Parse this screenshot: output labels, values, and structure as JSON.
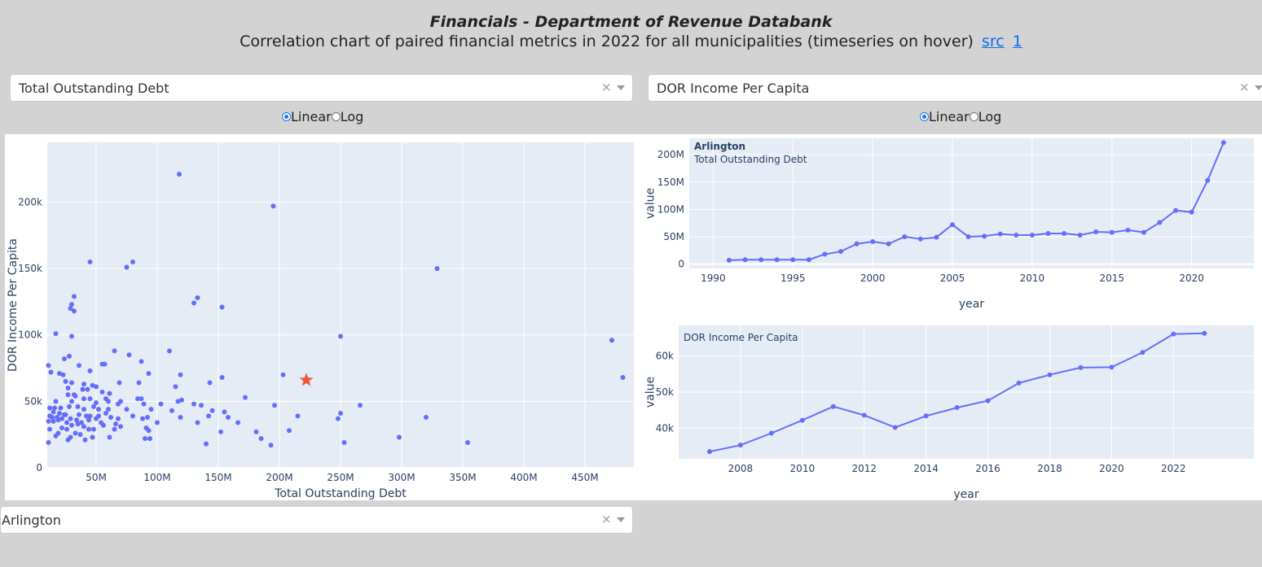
{
  "header": {
    "title": "Financials - Department of Revenue Databank",
    "subtitle": "Correlation chart of paired financial metrics in 2022 for all municipalities (timeseries on hover)",
    "link_src": "src",
    "link_1": "1"
  },
  "controls": {
    "x_metric": "Total Outstanding Debt",
    "y_metric": "DOR Income Per Capita",
    "x_scale_options": [
      "Linear",
      "Log"
    ],
    "x_scale_selected": "Linear",
    "y_scale_options": [
      "Linear",
      "Log"
    ],
    "y_scale_selected": "Linear",
    "municipality": "Arlington",
    "clear_symbol": "×",
    "dropdown_icon": "chevron-down-icon",
    "clear_icon": "close-icon"
  },
  "colors": {
    "marker": "#636efa",
    "highlight": "#ef553b",
    "plot_bg": "#e5ecf6"
  },
  "chart_data": [
    {
      "type": "scatter",
      "xlabel": "Total Outstanding Debt",
      "ylabel": "DOR Income Per Capita",
      "xlim": [
        10,
        490
      ],
      "ylim": [
        0,
        245
      ],
      "x_ticks": [
        50,
        100,
        150,
        200,
        250,
        300,
        350,
        400,
        450
      ],
      "x_tick_labels": [
        "50M",
        "100M",
        "150M",
        "200M",
        "250M",
        "300M",
        "350M",
        "400M",
        "450M"
      ],
      "y_ticks": [
        0,
        50,
        100,
        150,
        200
      ],
      "y_tick_labels": [
        "0",
        "50k",
        "100k",
        "150k",
        "200k"
      ],
      "grid": true,
      "highlight": {
        "name": "Arlington",
        "x": 222,
        "y": 66
      },
      "points": [
        [
          118,
          221
        ],
        [
          195,
          197
        ],
        [
          45,
          155
        ],
        [
          80,
          155
        ],
        [
          75,
          151
        ],
        [
          329,
          150
        ],
        [
          32,
          129
        ],
        [
          133,
          128
        ],
        [
          30,
          123
        ],
        [
          29,
          120
        ],
        [
          32,
          118
        ],
        [
          130,
          124
        ],
        [
          153,
          121
        ],
        [
          17,
          101
        ],
        [
          30,
          99
        ],
        [
          250,
          99
        ],
        [
          472,
          96
        ],
        [
          481,
          68
        ],
        [
          110,
          88
        ],
        [
          65,
          88
        ],
        [
          77,
          85
        ],
        [
          28,
          84
        ],
        [
          24,
          82
        ],
        [
          87,
          80
        ],
        [
          36,
          77
        ],
        [
          11,
          77
        ],
        [
          55,
          78
        ],
        [
          57,
          78
        ],
        [
          45,
          73
        ],
        [
          13,
          72
        ],
        [
          20,
          71
        ],
        [
          23,
          70
        ],
        [
          93,
          71
        ],
        [
          119,
          70
        ],
        [
          203,
          70
        ],
        [
          153,
          68
        ],
        [
          25,
          65
        ],
        [
          30,
          64
        ],
        [
          40,
          63
        ],
        [
          47,
          62
        ],
        [
          69,
          64
        ],
        [
          85,
          64
        ],
        [
          143,
          64
        ],
        [
          115,
          61
        ],
        [
          39,
          59
        ],
        [
          50,
          61
        ],
        [
          27,
          60
        ],
        [
          43,
          59
        ],
        [
          55,
          57
        ],
        [
          61,
          56
        ],
        [
          32,
          55
        ],
        [
          33,
          54
        ],
        [
          27,
          55
        ],
        [
          40,
          52
        ],
        [
          45,
          52
        ],
        [
          58,
          52
        ],
        [
          172,
          53
        ],
        [
          84,
          52
        ],
        [
          87,
          52
        ],
        [
          120,
          51
        ],
        [
          117,
          50
        ],
        [
          60,
          50
        ],
        [
          70,
          50
        ],
        [
          17,
          50
        ],
        [
          30,
          50
        ],
        [
          50,
          49
        ],
        [
          68,
          48
        ],
        [
          89,
          48
        ],
        [
          103,
          48
        ],
        [
          130,
          48
        ],
        [
          136,
          47
        ],
        [
          196,
          47
        ],
        [
          266,
          47
        ],
        [
          28,
          46
        ],
        [
          35,
          46
        ],
        [
          48,
          46
        ],
        [
          12,
          45
        ],
        [
          16,
          45
        ],
        [
          21,
          45
        ],
        [
          40,
          44
        ],
        [
          52,
          44
        ],
        [
          60,
          44
        ],
        [
          75,
          44
        ],
        [
          95,
          44
        ],
        [
          112,
          43
        ],
        [
          145,
          43
        ],
        [
          155,
          42
        ],
        [
          250,
          41
        ],
        [
          20,
          41
        ],
        [
          24,
          40
        ],
        [
          36,
          40
        ],
        [
          45,
          39
        ],
        [
          52,
          39
        ],
        [
          62,
          38
        ],
        [
          80,
          39
        ],
        [
          92,
          38
        ],
        [
          119,
          38
        ],
        [
          142,
          39
        ],
        [
          158,
          38
        ],
        [
          12,
          39
        ],
        [
          14,
          38
        ],
        [
          18,
          38
        ],
        [
          22,
          37
        ],
        [
          29,
          37
        ],
        [
          34,
          36
        ],
        [
          44,
          36
        ],
        [
          50,
          37
        ],
        [
          68,
          37
        ],
        [
          88,
          37
        ],
        [
          215,
          39
        ],
        [
          248,
          37
        ],
        [
          320,
          38
        ],
        [
          11,
          35
        ],
        [
          15,
          35
        ],
        [
          26,
          34
        ],
        [
          38,
          34
        ],
        [
          54,
          34
        ],
        [
          66,
          33
        ],
        [
          100,
          34
        ],
        [
          133,
          34
        ],
        [
          166,
          34
        ],
        [
          30,
          32
        ],
        [
          40,
          31
        ],
        [
          56,
          32
        ],
        [
          70,
          31
        ],
        [
          91,
          30
        ],
        [
          22,
          30
        ],
        [
          44,
          29
        ],
        [
          48,
          29
        ],
        [
          12,
          29
        ],
        [
          26,
          29
        ],
        [
          65,
          29
        ],
        [
          93,
          28
        ],
        [
          152,
          27
        ],
        [
          181,
          27
        ],
        [
          208,
          28
        ],
        [
          19,
          26
        ],
        [
          33,
          26
        ],
        [
          29,
          23
        ],
        [
          37,
          25
        ],
        [
          47,
          23
        ],
        [
          61,
          23
        ],
        [
          90,
          22
        ],
        [
          94,
          22
        ],
        [
          185,
          22
        ],
        [
          27,
          21
        ],
        [
          41,
          21
        ],
        [
          140,
          18
        ],
        [
          193,
          17
        ],
        [
          253,
          19
        ],
        [
          298,
          23
        ],
        [
          354,
          19
        ],
        [
          11,
          19
        ],
        [
          17,
          24
        ],
        [
          15,
          42
        ],
        [
          25,
          40
        ],
        [
          35,
          33
        ],
        [
          19,
          36
        ],
        [
          42,
          39
        ],
        [
          58,
          41
        ]
      ]
    },
    {
      "type": "line",
      "annotation_title": "Arlington",
      "annotation_subtitle": "Total Outstanding Debt",
      "xlabel": "year",
      "ylabel": "value",
      "xlim": [
        1988.5,
        2023.9
      ],
      "ylim": [
        -8,
        230
      ],
      "x_ticks": [
        1990,
        1995,
        2000,
        2005,
        2010,
        2015,
        2020
      ],
      "y_ticks": [
        0,
        50,
        100,
        150,
        200
      ],
      "y_tick_labels": [
        "0",
        "50M",
        "100M",
        "150M",
        "200M"
      ],
      "x": [
        1991,
        1992,
        1993,
        1994,
        1995,
        1996,
        1997,
        1998,
        1999,
        2000,
        2001,
        2002,
        2003,
        2004,
        2005,
        2006,
        2007,
        2008,
        2009,
        2010,
        2011,
        2012,
        2013,
        2014,
        2015,
        2016,
        2017,
        2018,
        2019,
        2020,
        2021,
        2022
      ],
      "values": [
        7,
        8,
        8,
        8,
        8,
        8,
        18,
        23,
        37,
        41,
        37,
        50,
        46,
        49,
        72,
        50,
        51,
        55,
        53,
        53,
        56,
        56,
        53,
        59,
        58,
        62,
        58,
        76,
        98,
        95,
        153,
        222
      ]
    },
    {
      "type": "line",
      "annotation_title": "",
      "annotation_subtitle": "DOR Income Per Capita",
      "xlabel": "year",
      "ylabel": "value",
      "xlim": [
        2006.0,
        2024.6
      ],
      "ylim": [
        31.5,
        68.5
      ],
      "x_ticks": [
        2008,
        2010,
        2012,
        2014,
        2016,
        2018,
        2020,
        2022
      ],
      "y_ticks": [
        40,
        50,
        60
      ],
      "y_tick_labels": [
        "40k",
        "50k",
        "60k"
      ],
      "x": [
        2007,
        2008,
        2009,
        2010,
        2011,
        2012,
        2013,
        2014,
        2015,
        2016,
        2017,
        2018,
        2019,
        2020,
        2021,
        2022,
        2023
      ],
      "values": [
        33.5,
        35.3,
        38.6,
        42.2,
        46.0,
        43.6,
        40.2,
        43.4,
        45.7,
        47.6,
        52.5,
        54.8,
        56.8,
        56.9,
        61.0,
        66.1,
        66.3
      ]
    }
  ]
}
